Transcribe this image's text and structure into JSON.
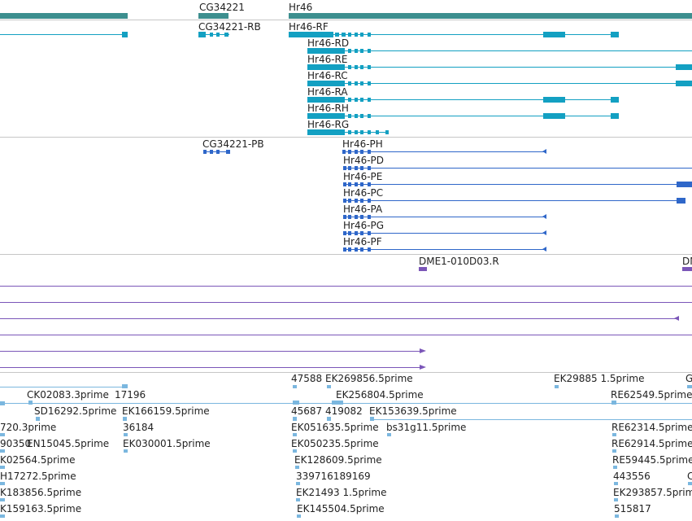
{
  "colors": {
    "gene": "#3d8f8f",
    "transcript": "#13a0c2",
    "protein": "#2f67c9",
    "clone": "#7b56b8",
    "est": "#7bb7df",
    "lane_divider": "#c6c6c6",
    "text": "#222222"
  },
  "genes": {
    "items": [
      {
        "name": "CG34221"
      },
      {
        "name": "Hr46"
      }
    ]
  },
  "transcripts": {
    "items": [
      {
        "name": "CG34221-RB"
      },
      {
        "name": "Hr46-RF"
      },
      {
        "name": "Hr46-RD"
      },
      {
        "name": "Hr46-RE"
      },
      {
        "name": "Hr46-RC"
      },
      {
        "name": "Hr46-RA"
      },
      {
        "name": "Hr46-RH"
      },
      {
        "name": "Hr46-RG"
      }
    ]
  },
  "proteins": {
    "items": [
      {
        "name": "CG34221-PB"
      },
      {
        "name": "Hr46-PH"
      },
      {
        "name": "Hr46-PD"
      },
      {
        "name": "Hr46-PE"
      },
      {
        "name": "Hr46-PC"
      },
      {
        "name": "Hr46-PA"
      },
      {
        "name": "Hr46-PG"
      },
      {
        "name": "Hr46-PF"
      }
    ]
  },
  "clones": {
    "items": [
      {
        "name": "DME1-010D03.R"
      },
      {
        "name": "DM"
      }
    ]
  },
  "ests": {
    "items": [
      {
        "name": "47588"
      },
      {
        "name": "EK269856.5prime"
      },
      {
        "name": "EK29885 1.5prime"
      },
      {
        "name": "G"
      },
      {
        "name": "CK02083.3prime"
      },
      {
        "name": "17196"
      },
      {
        "name": "EK256804.5prime"
      },
      {
        "name": "SD16292.5prime"
      },
      {
        "name": "EK166159.5prime"
      },
      {
        "name": "45687"
      },
      {
        "name": "419082"
      },
      {
        "name": "EK153639.5prime"
      },
      {
        "name": "RE62549.5prime"
      },
      {
        "name": "720.3prime"
      },
      {
        "name": "36184"
      },
      {
        "name": "EK051635.5prime"
      },
      {
        "name": "bs31g11.5prime"
      },
      {
        "name": "RE62314.5prime"
      },
      {
        "name": "90350"
      },
      {
        "name": "EN15045.5prime"
      },
      {
        "name": "EK030001.5prime"
      },
      {
        "name": "EK050235.5prime"
      },
      {
        "name": "RE62914.5prime"
      },
      {
        "name": "K02564.5prime"
      },
      {
        "name": "EK128609.5prime"
      },
      {
        "name": "RE59445.5prime"
      },
      {
        "name": "H17272.5prime"
      },
      {
        "name": "339716189169"
      },
      {
        "name": "443556"
      },
      {
        "name": "C"
      },
      {
        "name": "K183856.5prime"
      },
      {
        "name": "EK21493 1.5prime"
      },
      {
        "name": "EK293857.5prime"
      },
      {
        "name": "K159163.5prime"
      },
      {
        "name": "EK145504.5prime"
      },
      {
        "name": "515817"
      }
    ]
  }
}
